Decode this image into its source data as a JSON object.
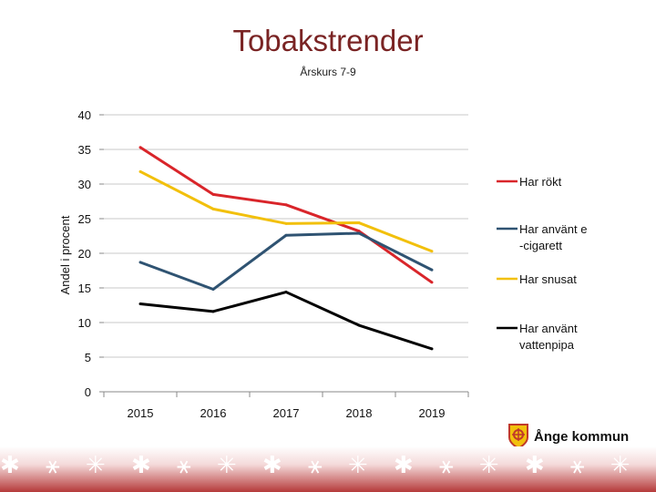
{
  "page": {
    "title": "Tobakstrender",
    "subtitle": "Årskurs 7-9"
  },
  "logo": {
    "text": "Ånge kommun",
    "icon": "municipal-crest-icon"
  },
  "footer": {
    "decoration_icon": "sami-pattern-band"
  },
  "chart_data": {
    "type": "line",
    "title": "Tobakstrender",
    "subtitle": "Årskurs 7-9",
    "xlabel": "",
    "ylabel": "Andel i procent",
    "ylim": [
      0,
      40
    ],
    "yticks": [
      0,
      5,
      10,
      15,
      20,
      25,
      30,
      35,
      40
    ],
    "grid": true,
    "legend_position": "right",
    "categories": [
      "2015",
      "2016",
      "2017",
      "2018",
      "2019"
    ],
    "series": [
      {
        "name": "Har rökt",
        "color": "#d9252a",
        "values": [
          35.3,
          28.5,
          27.0,
          23.2,
          15.8
        ]
      },
      {
        "name": "Har använt e -cigarett",
        "legend_lines": [
          "Har använt e",
          "-cigarett"
        ],
        "color": "#2f5372",
        "values": [
          18.7,
          14.8,
          22.6,
          22.9,
          17.6
        ]
      },
      {
        "name": "Har snusat",
        "color": "#f2c00c",
        "values": [
          31.8,
          26.4,
          24.3,
          24.4,
          20.3
        ]
      },
      {
        "name": "Har använt vattenpipa",
        "legend_lines": [
          "Har använt",
          "vattenpipa"
        ],
        "color": "#000000",
        "values": [
          12.7,
          11.6,
          14.4,
          9.6,
          6.2
        ]
      }
    ]
  }
}
